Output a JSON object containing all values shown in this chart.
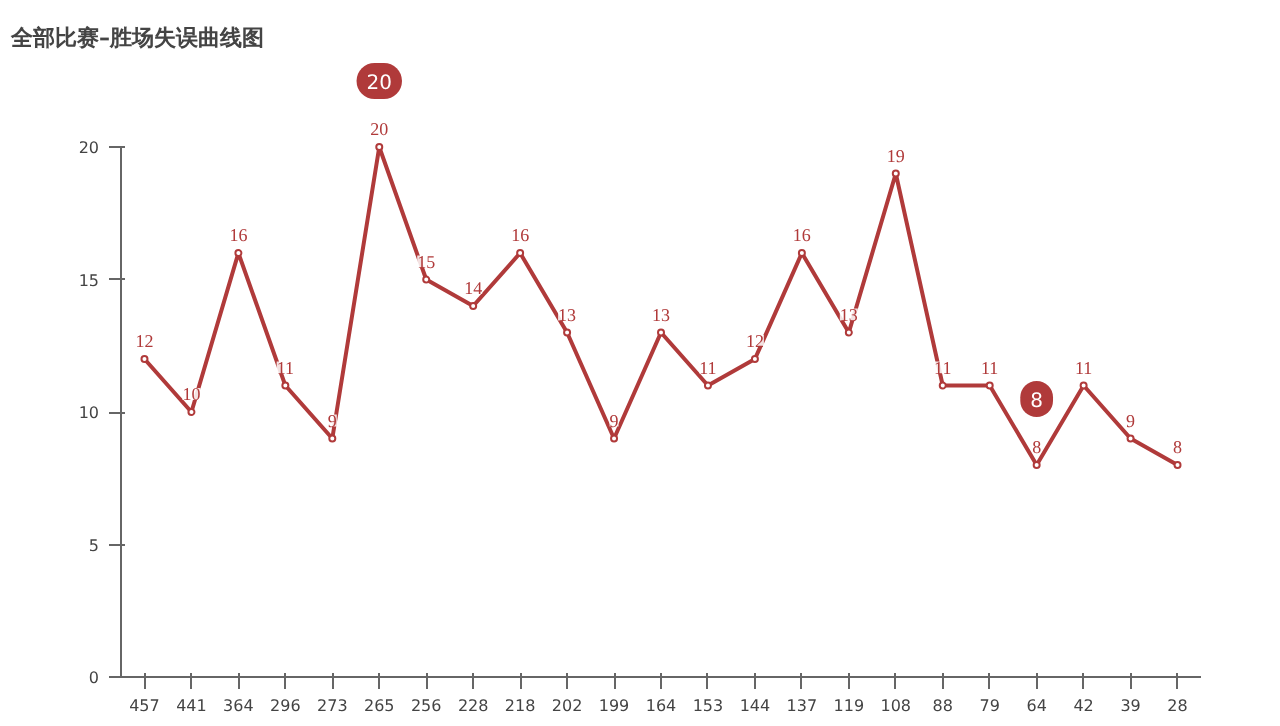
{
  "chart_data": {
    "type": "line",
    "title": "全部比赛–胜场失误曲线图",
    "categories": [
      "457",
      "441",
      "364",
      "296",
      "273",
      "265",
      "256",
      "228",
      "218",
      "202",
      "199",
      "164",
      "153",
      "144",
      "137",
      "119",
      "108",
      "88",
      "79",
      "64",
      "42",
      "39",
      "28"
    ],
    "series": [
      {
        "color": "#b03a3a",
        "values": [
          12,
          10,
          16,
          11,
          9,
          20,
          15,
          14,
          16,
          13,
          9,
          13,
          11,
          12,
          16,
          13,
          19,
          11,
          11,
          8,
          11,
          9,
          8
        ]
      }
    ],
    "ylim": [
      0,
      20
    ],
    "yticks": [
      0,
      5,
      10,
      15,
      20
    ],
    "grid": false,
    "data_labels": true,
    "marker": "circle",
    "annotations": [
      {
        "text": "20",
        "x": "265",
        "y": 20
      },
      {
        "text": "8",
        "x": "64",
        "y": 8
      }
    ]
  }
}
